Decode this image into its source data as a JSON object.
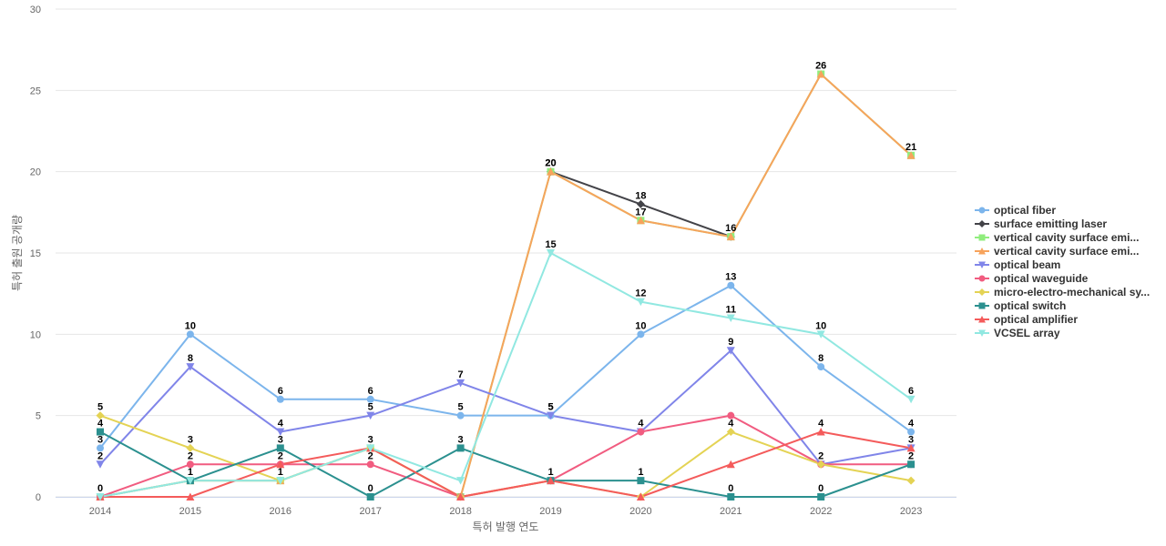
{
  "chart_data": {
    "type": "line",
    "title": "",
    "xlabel": "특허 발행 연도",
    "ylabel": "특허 출원 공개량",
    "ylim": [
      0,
      30
    ],
    "yticks": [
      0,
      5,
      10,
      15,
      20,
      25,
      30
    ],
    "grid": true,
    "legend_position": "right",
    "categories": [
      "2014",
      "2015",
      "2016",
      "2017",
      "2018",
      "2019",
      "2020",
      "2021",
      "2022",
      "2023"
    ],
    "series": [
      {
        "name": "optical fiber",
        "legend_label": "optical fiber",
        "color": "#7cb5ec",
        "marker": "circle",
        "values": [
          3,
          10,
          6,
          6,
          5,
          5,
          10,
          13,
          8,
          4
        ]
      },
      {
        "name": "surface emitting laser",
        "legend_label": "surface emitting laser",
        "color": "#434348",
        "marker": "diamond",
        "values": [
          null,
          null,
          null,
          null,
          null,
          20,
          18,
          16,
          null,
          null
        ]
      },
      {
        "name": "vertical cavity surface emitting laser",
        "legend_label": "vertical cavity surface emi...",
        "color": "#90ed7d",
        "marker": "square",
        "values": [
          0,
          1,
          1,
          3,
          0,
          20,
          17,
          16,
          26,
          21
        ]
      },
      {
        "name": "vertical cavity surface emitting laser device",
        "legend_label": "vertical cavity surface emi...",
        "color": "#f7a35c",
        "marker": "triangle",
        "values": [
          0,
          1,
          1,
          3,
          0,
          20,
          17,
          16,
          26,
          21
        ]
      },
      {
        "name": "optical beam",
        "legend_label": "optical beam",
        "color": "#8085e9",
        "marker": "triangle-down",
        "values": [
          2,
          8,
          4,
          5,
          7,
          5,
          4,
          9,
          2,
          3
        ]
      },
      {
        "name": "optical waveguide",
        "legend_label": "optical waveguide",
        "color": "#f15c80",
        "marker": "circle",
        "values": [
          0,
          2,
          2,
          2,
          0,
          1,
          4,
          5,
          2,
          2
        ]
      },
      {
        "name": "micro-electro-mechanical system",
        "legend_label": "micro-electro-mechanical sy...",
        "color": "#e4d354",
        "marker": "diamond",
        "values": [
          5,
          3,
          1,
          3,
          0,
          1,
          0,
          4,
          2,
          1
        ]
      },
      {
        "name": "optical switch",
        "legend_label": "optical switch",
        "color": "#2b908f",
        "marker": "square",
        "values": [
          4,
          1,
          3,
          0,
          3,
          1,
          1,
          0,
          0,
          2
        ]
      },
      {
        "name": "optical amplifier",
        "legend_label": "optical amplifier",
        "color": "#f45b5b",
        "marker": "triangle",
        "values": [
          0,
          0,
          2,
          3,
          0,
          1,
          0,
          2,
          4,
          3
        ]
      },
      {
        "name": "VCSEL array",
        "legend_label": "VCSEL array",
        "color": "#91e8e1",
        "marker": "triangle-down",
        "values": [
          0,
          1,
          1,
          3,
          1,
          15,
          12,
          11,
          10,
          6
        ]
      }
    ],
    "data_labels": [
      {
        "series": 0,
        "points": [
          0,
          1,
          2,
          3,
          4,
          5,
          6,
          7,
          8,
          9
        ]
      },
      {
        "series": 1,
        "points": [
          5,
          6,
          7
        ]
      },
      {
        "series": 2,
        "points": [
          8,
          9
        ]
      },
      {
        "series": 3,
        "points": [
          5,
          6
        ]
      },
      {
        "series": 4,
        "points": [
          0,
          1,
          2,
          3,
          4,
          5,
          6,
          7,
          8,
          9
        ]
      },
      {
        "series": 5,
        "points": [
          1,
          3,
          9
        ]
      },
      {
        "series": 6,
        "points": [
          0,
          1,
          2,
          3,
          7
        ]
      },
      {
        "series": 7,
        "points": [
          0,
          1,
          2,
          3,
          4,
          5,
          6,
          7,
          8
        ]
      },
      {
        "series": 8,
        "points": [
          0,
          2,
          8
        ]
      },
      {
        "series": 9,
        "points": [
          5,
          6,
          7,
          8,
          9
        ]
      }
    ]
  }
}
